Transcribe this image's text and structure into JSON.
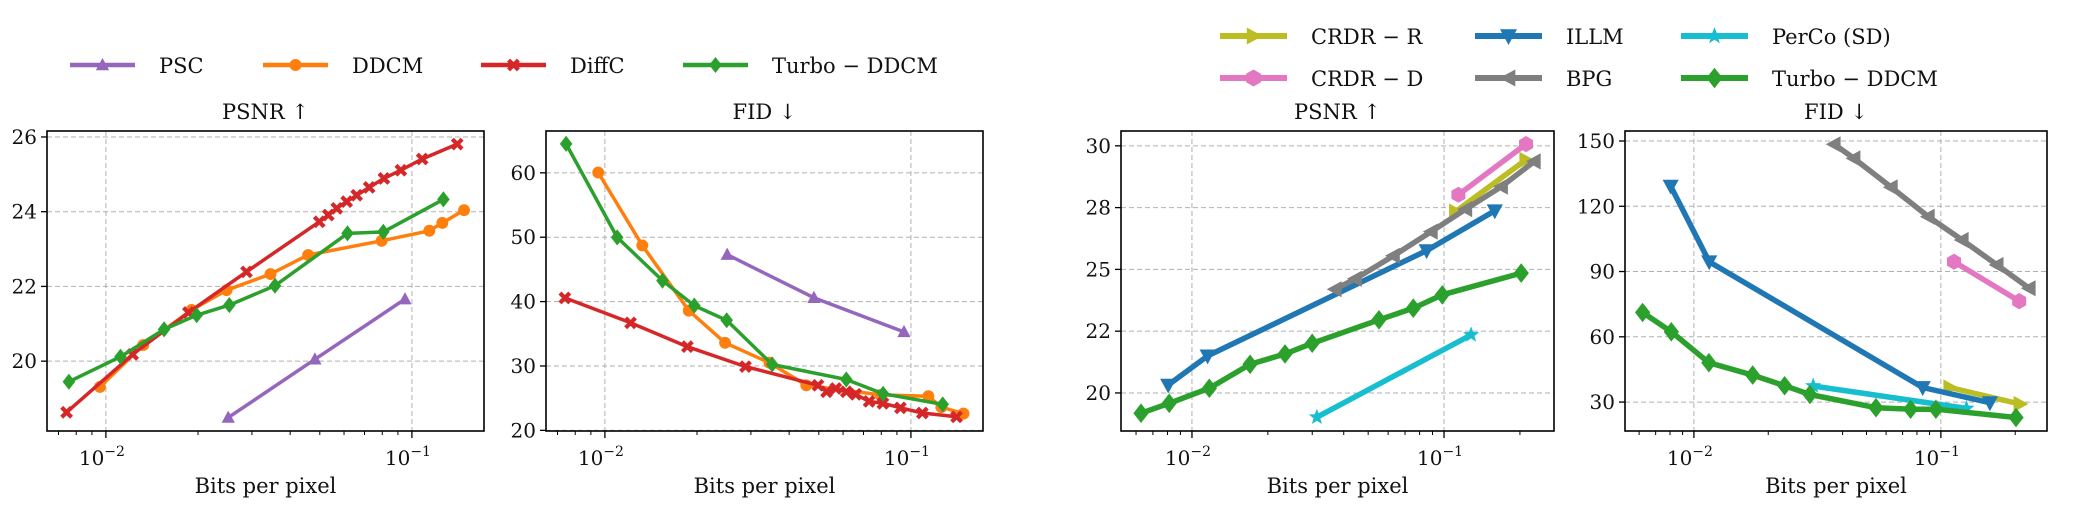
{
  "series_styles": {
    "PSC": {
      "color": "#9467bd",
      "marker": "triangle-up"
    },
    "DDCM": {
      "color": "#ff7f0e",
      "marker": "circle"
    },
    "DiffC": {
      "color": "#d62728",
      "marker": "x-filled"
    },
    "Turbo − DDCM": {
      "color": "#2ca02c",
      "marker": "diamond"
    },
    "CRDR − R": {
      "color": "#bcbd22",
      "marker": "triangle-right"
    },
    "CRDR − D": {
      "color": "#e377c2",
      "marker": "hexagon"
    },
    "ILLM": {
      "color": "#1f77b4",
      "marker": "triangle-down"
    },
    "BPG": {
      "color": "#7f7f7f",
      "marker": "triangle-left"
    },
    "PerCo (SD)": {
      "color": "#17becf",
      "marker": "star"
    }
  },
  "legends": [
    {
      "entries": [
        "PSC",
        "DDCM",
        "DiffC",
        "Turbo − DDCM"
      ]
    },
    {
      "entries": [
        "CRDR − R",
        "ILLM",
        "PerCo (SD)",
        "CRDR − D",
        "BPG",
        "Turbo − DDCM"
      ]
    }
  ],
  "chart_data": [
    {
      "type": "line",
      "title": "PSNR ↑",
      "xlabel": "Bits per pixel",
      "ylabel": "",
      "xscale": "log",
      "xlim": [
        0.00642,
        0.172
      ],
      "ylim": [
        18.13,
        26.16
      ],
      "xticks": [
        0.01,
        0.1
      ],
      "xtick_labels": [
        "10",
        "10"
      ],
      "xtick_exponents": [
        "−2",
        "−1"
      ],
      "yticks": [
        20,
        22,
        24,
        26
      ],
      "ytick_labels": [
        "20",
        "22",
        "24",
        "26"
      ],
      "grid": true,
      "series": [
        {
          "name": "PSC",
          "x": [
            0.0251,
            0.0482,
            0.0949
          ],
          "y": [
            18.49,
            20.05,
            21.66
          ]
        },
        {
          "name": "DDCM",
          "x": [
            0.00956,
            0.01324,
            0.01905,
            0.0248,
            0.0345,
            0.0458,
            0.0796,
            0.114,
            0.1257,
            0.148
          ],
          "y": [
            19.31,
            20.43,
            21.37,
            21.9,
            22.33,
            22.84,
            23.22,
            23.49,
            23.7,
            24.04
          ]
        },
        {
          "name": "DiffC",
          "x": [
            0.00744,
            0.01223,
            0.0186,
            0.0288,
            0.0498,
            0.0533,
            0.0568,
            0.0612,
            0.066,
            0.0725,
            0.081,
            0.092,
            0.108,
            0.1406
          ],
          "y": [
            18.63,
            20.18,
            21.3,
            22.39,
            23.73,
            23.91,
            24.09,
            24.27,
            24.44,
            24.65,
            24.89,
            25.11,
            25.41,
            25.81
          ]
        },
        {
          "name": "Turbo − DDCM",
          "x": [
            0.00757,
            0.01116,
            0.01549,
            0.0198,
            0.0253,
            0.0357,
            0.0616,
            0.0806,
            0.1267
          ],
          "y": [
            19.45,
            20.12,
            20.85,
            21.23,
            21.5,
            22.02,
            23.42,
            23.46,
            24.33
          ]
        }
      ]
    },
    {
      "type": "line",
      "title": "FID ↓",
      "xlabel": "Bits per pixel",
      "ylabel": "",
      "xscale": "log",
      "xlim": [
        0.00642,
        0.172
      ],
      "ylim": [
        19.9,
        66.5
      ],
      "xticks": [
        0.01,
        0.1
      ],
      "xtick_labels": [
        "10",
        "10"
      ],
      "xtick_exponents": [
        "−2",
        "−1"
      ],
      "yticks": [
        20,
        30,
        40,
        50,
        60
      ],
      "ytick_labels": [
        "20",
        "30",
        "40",
        "50",
        "60"
      ],
      "grid": true,
      "series": [
        {
          "name": "PSC",
          "x": [
            0.0251,
            0.0482,
            0.0949
          ],
          "y": [
            47.3,
            40.6,
            35.3
          ]
        },
        {
          "name": "DDCM",
          "x": [
            0.00951,
            0.01325,
            0.0188,
            0.0247,
            0.0345,
            0.0455,
            0.0796,
            0.114,
            0.1257,
            0.1485
          ],
          "y": [
            60.05,
            48.73,
            38.6,
            33.6,
            30.5,
            27.0,
            25.5,
            25.3,
            23.6,
            22.6
          ]
        },
        {
          "name": "DiffC",
          "x": [
            0.0074,
            0.01213,
            0.0186,
            0.0288,
            0.0497,
            0.053,
            0.0568,
            0.0615,
            0.066,
            0.073,
            0.081,
            0.0924,
            0.109,
            0.141
          ],
          "y": [
            40.57,
            36.7,
            33.0,
            29.9,
            27.0,
            26.0,
            26.5,
            26.0,
            25.6,
            24.5,
            24.2,
            23.5,
            22.7,
            22.1
          ]
        },
        {
          "name": "Turbo − DDCM",
          "x": [
            0.00747,
            0.01097,
            0.01542,
            0.0196,
            0.025,
            0.0352,
            0.0615,
            0.0811,
            0.127
          ],
          "y": [
            64.5,
            49.97,
            43.26,
            39.38,
            37.1,
            30.23,
            27.9,
            25.69,
            24.03
          ]
        }
      ]
    },
    {
      "type": "line",
      "title": "PSNR ↑",
      "xlabel": "Bits per pixel",
      "ylabel": "",
      "xscale": "log",
      "xlim": [
        0.00523,
        0.273
      ],
      "ylim": [
        18.46,
        30.6
      ],
      "xticks": [
        0.01,
        0.1
      ],
      "xtick_labels": [
        "10",
        "10"
      ],
      "xtick_exponents": [
        "−2",
        "−1"
      ],
      "yticks": [
        20,
        22.5,
        25,
        27.5,
        30
      ],
      "ytick_labels": [
        "20",
        "22",
        "25",
        "28",
        "30"
      ],
      "grid": true,
      "series": [
        {
          "name": "CRDR − R",
          "x": [
            0.111,
            0.211
          ],
          "y": [
            27.34,
            29.43
          ]
        },
        {
          "name": "CRDR − D",
          "x": [
            0.114,
            0.2114
          ],
          "y": [
            28.02,
            30.07
          ]
        },
        {
          "name": "ILLM",
          "x": [
            0.00805,
            0.01154,
            0.0853,
            0.159
          ],
          "y": [
            20.32,
            21.5,
            25.76,
            27.37
          ]
        },
        {
          "name": "BPG",
          "x": [
            0.037,
            0.0445,
            0.063,
            0.089,
            0.122,
            0.169,
            0.228
          ],
          "y": [
            24.2,
            24.62,
            25.55,
            26.53,
            27.44,
            28.35,
            29.37
          ]
        },
        {
          "name": "PerCo (SD)",
          "x": [
            0.0313,
            0.128
          ],
          "y": [
            19.02,
            22.35
          ]
        },
        {
          "name": "Turbo − DDCM",
          "x": [
            0.00628,
            0.00812,
            0.01172,
            0.017,
            0.0234,
            0.03,
            0.0552,
            0.0755,
            0.0984,
            0.2024
          ],
          "y": [
            19.18,
            19.58,
            20.19,
            21.16,
            21.58,
            22.01,
            22.96,
            23.43,
            23.97,
            24.85
          ]
        }
      ]
    },
    {
      "type": "line",
      "title": "FID ↓",
      "xlabel": "Bits per pixel",
      "ylabel": "",
      "xscale": "log",
      "xlim": [
        0.00526,
        0.269
      ],
      "ylim": [
        16.7,
        154.6
      ],
      "xticks": [
        0.01,
        0.1
      ],
      "xtick_labels": [
        "10",
        "10"
      ],
      "xtick_exponents": [
        "−2",
        "−1"
      ],
      "yticks": [
        30,
        60,
        90,
        120,
        150
      ],
      "ytick_labels": [
        "30",
        "60",
        "90",
        "120",
        "150"
      ],
      "grid": true,
      "series": [
        {
          "name": "CRDR − R",
          "x": [
            0.1087,
            0.209
          ],
          "y": [
            36.7,
            29.1
          ]
        },
        {
          "name": "CRDR − D",
          "x": [
            0.113,
            0.2075
          ],
          "y": [
            94.5,
            76.4
          ]
        },
        {
          "name": "ILLM",
          "x": [
            0.00805,
            0.01153,
            0.0844,
            0.158
          ],
          "y": [
            129.3,
            94.5,
            36.7,
            29.7
          ]
        },
        {
          "name": "BPG",
          "x": [
            0.037,
            0.0445,
            0.063,
            0.089,
            0.122,
            0.169,
            0.228
          ],
          "y": [
            148.5,
            142,
            128.7,
            115.2,
            104.5,
            93,
            82.3
          ]
        },
        {
          "name": "PerCo (SD)",
          "x": [
            0.0304,
            0.127
          ],
          "y": [
            37.4,
            27.1
          ]
        },
        {
          "name": "Turbo − DDCM",
          "x": [
            0.0062,
            0.0081,
            0.0115,
            0.0173,
            0.0233,
            0.0295,
            0.0546,
            0.0754,
            0.0955,
            0.2015
          ],
          "y": [
            71.2,
            62.3,
            48.1,
            42.4,
            37.5,
            33.5,
            27.4,
            26.7,
            26.7,
            22.9
          ]
        }
      ]
    }
  ]
}
